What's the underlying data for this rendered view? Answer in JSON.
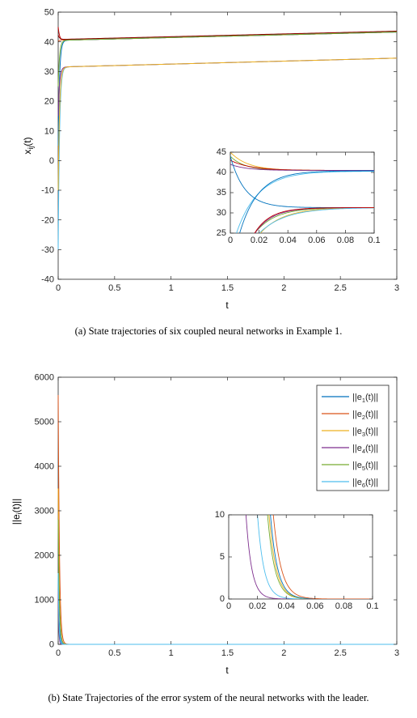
{
  "captions": {
    "a": "(a)  State trajectories of six coupled neural networks in Example 1.",
    "b": "(b)  State Trajectories of the error system of the neural networks with the leader."
  },
  "colors": {
    "blue": "#0072BD",
    "orange": "#D95319",
    "yellow": "#EDB120",
    "purple": "#7E2F8E",
    "green": "#77AC30",
    "cyan": "#4DBEEE",
    "red": "#C00000"
  },
  "chart_data": [
    {
      "type": "line",
      "xlabel": "t",
      "ylabel": "x_ij(t)",
      "xlim": [
        0,
        3
      ],
      "ylim": [
        -40,
        50
      ],
      "xticks": [
        "0",
        "0.5",
        "1",
        "1.5",
        "2",
        "2.5",
        "3"
      ],
      "yticks": [
        "50",
        "40",
        "30",
        "20",
        "10",
        "0",
        "-10",
        "-20",
        "-30",
        "-40"
      ],
      "series_summary": [
        {
          "t": [
            0,
            0.02,
            0.05,
            1,
            2,
            3
          ],
          "y": [
            45,
            41,
            40.5,
            41.2,
            42.3,
            43.3
          ]
        },
        {
          "t": [
            0,
            0.02,
            0.05,
            1,
            2,
            3
          ],
          "y": [
            -30,
            30,
            31.5,
            32.2,
            33.3,
            34.5
          ]
        }
      ],
      "inset": {
        "xlim": [
          0,
          0.1
        ],
        "ylim": [
          25,
          45
        ],
        "xticks": [
          "0",
          "0.02",
          "0.04",
          "0.06",
          "0.08",
          "0.1"
        ],
        "yticks": [
          "45",
          "40",
          "35",
          "30",
          "25"
        ]
      }
    },
    {
      "type": "line",
      "xlabel": "t",
      "ylabel": "||e_i(t)||",
      "xlim": [
        0,
        3
      ],
      "ylim": [
        0,
        6000
      ],
      "xticks": [
        "0",
        "0.5",
        "1",
        "1.5",
        "2",
        "2.5",
        "3"
      ],
      "yticks": [
        "6000",
        "5000",
        "4000",
        "3000",
        "2000",
        "1000",
        "0"
      ],
      "series": [
        {
          "name": "||e_1(t)||",
          "initial": 1500,
          "converge_t": 0.035
        },
        {
          "name": "||e_2(t)||",
          "initial": 5600,
          "converge_t": 0.045
        },
        {
          "name": "||e_3(t)||",
          "initial": 3500,
          "converge_t": 0.04
        },
        {
          "name": "||e_4(t)||",
          "initial": 1200,
          "converge_t": 0.02
        },
        {
          "name": "||e_5(t)||",
          "initial": 2800,
          "converge_t": 0.04
        },
        {
          "name": "||e_6(t)||",
          "initial": 1600,
          "converge_t": 0.025
        }
      ],
      "legend": {
        "placement": "top-right",
        "entries": [
          "||e",
          "1",
          "(t)||",
          "||e",
          "2",
          "(t)||",
          "||e",
          "3",
          "(t)||",
          "||e",
          "4",
          "(t)||",
          "||e",
          "5",
          "(t)||",
          "||e",
          "6",
          "(t)||"
        ]
      },
      "inset": {
        "xlim": [
          0,
          0.1
        ],
        "ylim": [
          0,
          10
        ],
        "xticks": [
          "0",
          "0.02",
          "0.04",
          "0.06",
          "0.08",
          "0.1"
        ],
        "yticks": [
          "10",
          "5",
          "0"
        ]
      }
    }
  ]
}
